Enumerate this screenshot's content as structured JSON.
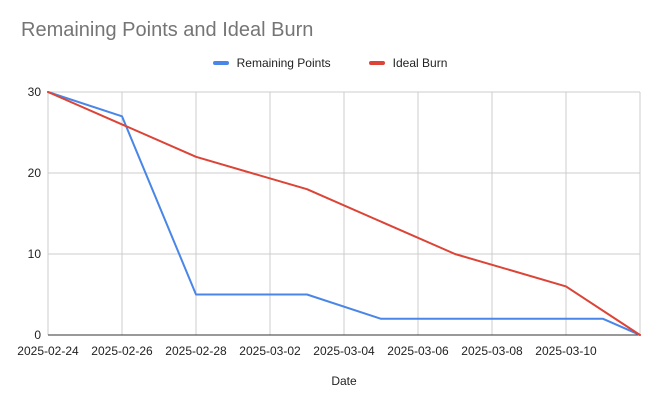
{
  "chart_data": {
    "type": "line",
    "title": "Remaining Points and Ideal Burn",
    "xlabel": "Date",
    "ylabel": "",
    "x_tick_labels": [
      "2025-02-24",
      "2025-02-26",
      "2025-02-28",
      "2025-03-02",
      "2025-03-04",
      "2025-03-06",
      "2025-03-08",
      "2025-03-10"
    ],
    "x_range": [
      "2025-02-24",
      "2025-03-12"
    ],
    "y_ticks": [
      0,
      10,
      20,
      30
    ],
    "ylim": [
      0,
      30
    ],
    "grid": true,
    "legend_position": "top",
    "series": [
      {
        "name": "Remaining Points",
        "color": "#4a86e8",
        "points": [
          {
            "x": "2025-02-24",
            "y": 30
          },
          {
            "x": "2025-02-26",
            "y": 27
          },
          {
            "x": "2025-02-28",
            "y": 5
          },
          {
            "x": "2025-03-03",
            "y": 5
          },
          {
            "x": "2025-03-05",
            "y": 2
          },
          {
            "x": "2025-03-11",
            "y": 2
          },
          {
            "x": "2025-03-12",
            "y": 0
          }
        ]
      },
      {
        "name": "Ideal Burn",
        "color": "#db4437",
        "points": [
          {
            "x": "2025-02-24",
            "y": 30
          },
          {
            "x": "2025-02-26",
            "y": 26
          },
          {
            "x": "2025-02-28",
            "y": 22
          },
          {
            "x": "2025-03-03",
            "y": 18
          },
          {
            "x": "2025-03-07",
            "y": 10
          },
          {
            "x": "2025-03-10",
            "y": 6
          },
          {
            "x": "2025-03-12",
            "y": 0
          }
        ]
      }
    ]
  }
}
